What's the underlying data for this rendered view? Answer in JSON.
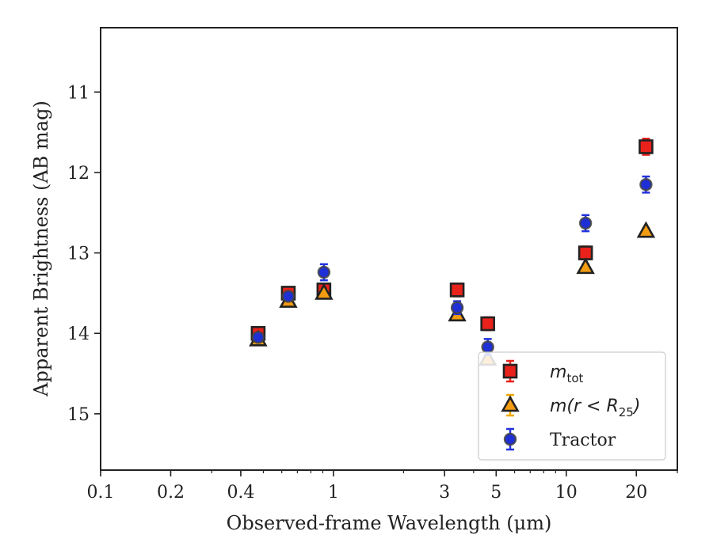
{
  "chart_data": {
    "type": "scatter",
    "xlabel": "Observed-frame Wavelength (μm)",
    "ylabel": "Apparent Brightness (AB mag)",
    "xscale": "log",
    "xlim": [
      0.1,
      30
    ],
    "ylim": [
      15.7,
      10.2
    ],
    "y_inverted": true,
    "grid": false,
    "legend_position": "lower-right",
    "x_ticks": [
      {
        "value": 0.1,
        "label": "0.1"
      },
      {
        "value": 0.2,
        "label": "0.2"
      },
      {
        "value": 0.4,
        "label": "0.4"
      },
      {
        "value": 1,
        "label": "1"
      },
      {
        "value": 3,
        "label": "3"
      },
      {
        "value": 5,
        "label": "5"
      },
      {
        "value": 10,
        "label": "10"
      },
      {
        "value": 20,
        "label": "20"
      }
    ],
    "y_ticks": [
      {
        "value": 11,
        "label": "11"
      },
      {
        "value": 12,
        "label": "12"
      },
      {
        "value": 13,
        "label": "13"
      },
      {
        "value": 14,
        "label": "14"
      },
      {
        "value": 15,
        "label": "15"
      }
    ],
    "series": [
      {
        "name": "m_tot",
        "legend_label": {
          "main": "m",
          "sub": "tot"
        },
        "marker": "square",
        "color": "#e8221b",
        "edge_color": "#222222",
        "error_color": "#e8221b",
        "points": [
          {
            "x": 0.475,
            "y": 14.0,
            "err": 0.07
          },
          {
            "x": 0.64,
            "y": 13.5,
            "err": 0.07
          },
          {
            "x": 0.91,
            "y": 13.46,
            "err": 0.07
          },
          {
            "x": 3.4,
            "y": 13.46,
            "err": 0.08
          },
          {
            "x": 4.6,
            "y": 13.88,
            "err": 0.08
          },
          {
            "x": 12.1,
            "y": 13.0,
            "err": 0.08
          },
          {
            "x": 22.0,
            "y": 11.68,
            "err": 0.1
          }
        ]
      },
      {
        "name": "m(r < R25)",
        "legend_label": {
          "main": "m(r < R",
          "sub": "25",
          "tail": ")"
        },
        "marker": "triangle",
        "color": "#f39c12",
        "edge_color": "#222222",
        "error_color": "#f0a800",
        "points": [
          {
            "x": 0.475,
            "y": 14.08,
            "err": 0.04
          },
          {
            "x": 0.64,
            "y": 13.6,
            "err": 0.04
          },
          {
            "x": 0.91,
            "y": 13.5,
            "err": 0.04
          },
          {
            "x": 3.4,
            "y": 13.77,
            "err": 0.04
          },
          {
            "x": 4.6,
            "y": 14.32,
            "err": 0.04
          },
          {
            "x": 12.1,
            "y": 13.18,
            "err": 0.04
          },
          {
            "x": 22.0,
            "y": 12.73,
            "err": 0.04
          }
        ]
      },
      {
        "name": "Tractor",
        "legend_label": {
          "main": "Tractor"
        },
        "marker": "circle",
        "color": "#1f2fd6",
        "edge_color": "#444444",
        "error_color": "#2233dd",
        "points": [
          {
            "x": 0.475,
            "y": 14.05,
            "err": 0.05
          },
          {
            "x": 0.64,
            "y": 13.54,
            "err": 0.05
          },
          {
            "x": 0.91,
            "y": 13.24,
            "err": 0.1
          },
          {
            "x": 3.4,
            "y": 13.68,
            "err": 0.08
          },
          {
            "x": 4.6,
            "y": 14.17,
            "err": 0.1
          },
          {
            "x": 12.1,
            "y": 12.63,
            "err": 0.1
          },
          {
            "x": 22.0,
            "y": 12.15,
            "err": 0.1
          }
        ]
      }
    ]
  }
}
